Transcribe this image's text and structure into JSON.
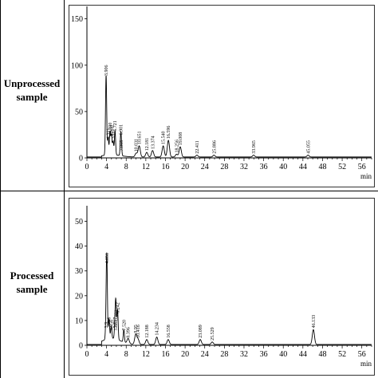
{
  "rows": [
    {
      "label_line1": "Unprocessed",
      "label_line2": "sample"
    },
    {
      "label_line1": "Processed",
      "label_line2": "sample"
    }
  ],
  "chart_data": [
    {
      "type": "line",
      "title": "",
      "xlabel": "min",
      "ylabel": "",
      "xlim": [
        0,
        58
      ],
      "ylim": [
        0,
        160
      ],
      "xticks": [
        0,
        4,
        8,
        12,
        16,
        20,
        24,
        28,
        32,
        36,
        40,
        44,
        48,
        52,
        56
      ],
      "yticks": [
        0,
        50,
        100,
        150
      ],
      "color": "#000000",
      "peaks": [
        {
          "rt": 3.906,
          "label": "3.906",
          "height": 86
        },
        {
          "rt": 4.311,
          "label": "4.311",
          "height": 18
        },
        {
          "rt": 4.7,
          "label": "4.700",
          "height": 24
        },
        {
          "rt": 5.0,
          "label": "5.000",
          "height": 21
        },
        {
          "rt": 5.331,
          "label": "5.331",
          "height": 14
        },
        {
          "rt": 5.721,
          "label": "5.721",
          "height": 26
        },
        {
          "rt": 6.901,
          "label": "6.901",
          "height": 22
        },
        {
          "rt": 7.005,
          "label": "7.005",
          "height": 5
        },
        {
          "rt": 10.031,
          "label": "10.031",
          "height": 4
        },
        {
          "rt": 10.651,
          "label": "10.651",
          "height": 12
        },
        {
          "rt": 12.181,
          "label": "12.181",
          "height": 5
        },
        {
          "rt": 13.374,
          "label": "13.374",
          "height": 7
        },
        {
          "rt": 15.54,
          "label": "15.540",
          "height": 12
        },
        {
          "rt": 16.596,
          "label": "16.596",
          "height": 18
        },
        {
          "rt": 18.256,
          "label": "18.256",
          "height": 3
        },
        {
          "rt": 19.008,
          "label": "19.008",
          "height": 11
        },
        {
          "rt": 22.411,
          "label": "22.411",
          "height": 2
        },
        {
          "rt": 25.886,
          "label": "25.886",
          "height": 2
        },
        {
          "rt": 33.965,
          "label": "33.965",
          "height": 2
        },
        {
          "rt": 45.055,
          "label": "45.055",
          "height": 2
        }
      ]
    },
    {
      "type": "line",
      "title": "",
      "xlabel": "min",
      "ylabel": "",
      "xlim": [
        0,
        58
      ],
      "ylim": [
        0,
        55
      ],
      "xticks": [
        0,
        4,
        8,
        12,
        16,
        20,
        24,
        28,
        32,
        36,
        40,
        44,
        48,
        52,
        56
      ],
      "yticks": [
        0,
        10,
        20,
        30,
        40,
        50
      ],
      "color": "#000000",
      "peaks": [
        {
          "rt": 3.9,
          "label": "3.9",
          "height": 6
        },
        {
          "rt": 4.051,
          "label": "4.051",
          "height": 32
        },
        {
          "rt": 4.5,
          "label": "4.5",
          "height": 8
        },
        {
          "rt": 4.956,
          "label": "4.956",
          "height": 5
        },
        {
          "rt": 5.881,
          "label": "5.881",
          "height": 5
        },
        {
          "rt": 5.717,
          "label": "5.717",
          "height": 6
        },
        {
          "rt": 5.901,
          "label": "5.901",
          "height": 9
        },
        {
          "rt": 6.242,
          "label": "6.242",
          "height": 12
        },
        {
          "rt": 7.52,
          "label": "7.520",
          "height": 5
        },
        {
          "rt": 8.396,
          "label": "8.396",
          "height": 2
        },
        {
          "rt": 9.95,
          "label": "9.95",
          "height": 4
        },
        {
          "rt": 10.416,
          "label": "10.416",
          "height": 2
        },
        {
          "rt": 12.188,
          "label": "12.188",
          "height": 2
        },
        {
          "rt": 14.234,
          "label": "14.234",
          "height": 3
        },
        {
          "rt": 16.558,
          "label": "16.558",
          "height": 2
        },
        {
          "rt": 23.089,
          "label": "23.089",
          "height": 2
        },
        {
          "rt": 25.529,
          "label": "25.529",
          "height": 1
        },
        {
          "rt": 46.133,
          "label": "46.133",
          "height": 6
        }
      ]
    }
  ]
}
